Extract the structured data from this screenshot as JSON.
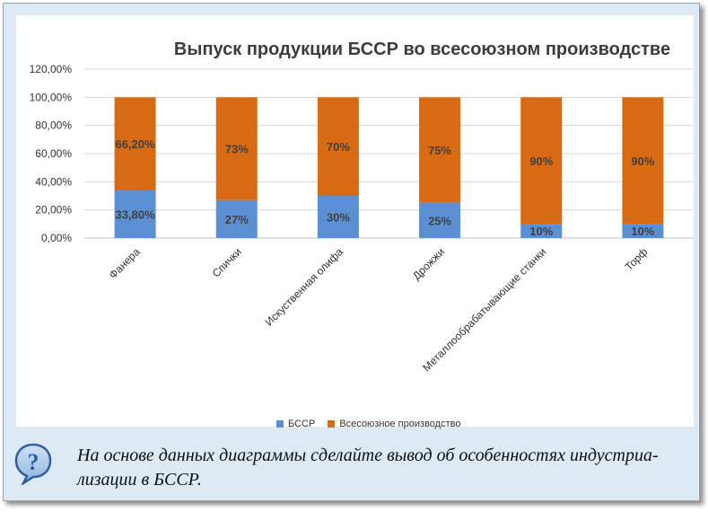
{
  "chart_data": {
    "type": "bar",
    "stacked": true,
    "title": "Выпуск продукции БССР во всесоюзном производстве",
    "categories": [
      "Фанера",
      "Спички",
      "Искуственная олифа",
      "Дрожжи",
      "Металлообрабатывающие станки",
      "Торф"
    ],
    "series": [
      {
        "name": "БССР",
        "color": "#5b8fd4",
        "values": [
          33.8,
          27,
          30,
          25,
          10,
          10
        ],
        "labels": [
          "33,80%",
          "27%",
          "30%",
          "25%",
          "10%",
          "10%"
        ]
      },
      {
        "name": "Всесоюзное производство",
        "color": "#d96a14",
        "values": [
          66.2,
          73,
          70,
          75,
          90,
          90
        ],
        "labels": [
          "66,20%",
          "73%",
          "70%",
          "75%",
          "90%",
          "90%"
        ]
      }
    ],
    "yticks": [
      "0,00%",
      "20,00%",
      "40,00%",
      "60,00%",
      "80,00%",
      "100,00%",
      "120,00%"
    ],
    "ylim": [
      0,
      120
    ],
    "grid": true,
    "legend": "bottom"
  },
  "question": {
    "text": "На основе данных диаграммы сделайте вывод об особенностях индустриа- лизации в БССР."
  }
}
